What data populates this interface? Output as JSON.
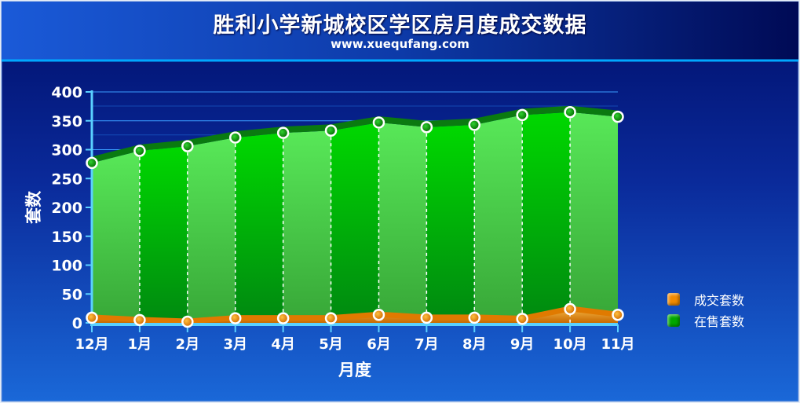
{
  "header": {
    "title": "胜利小学新城校区学区房月度成交数据",
    "subtitle": "www.xuequfang.com"
  },
  "chart_data": {
    "type": "area",
    "title": "胜利小学新城校区学区房月度成交数据",
    "subtitle": "www.xuequfang.com",
    "xlabel": "月度",
    "ylabel": "套数",
    "categories": [
      "12月",
      "1月",
      "2月",
      "3月",
      "4月",
      "5月",
      "6月",
      "7月",
      "8月",
      "9月",
      "10月",
      "11月"
    ],
    "ylim": [
      0,
      400
    ],
    "yticks": [
      0,
      50,
      100,
      150,
      200,
      250,
      300,
      350,
      400
    ],
    "legend_position": "right",
    "series": [
      {
        "name": "成交套数",
        "color": "#f08a00",
        "values": [
          9,
          5,
          2,
          8,
          8,
          8,
          14,
          9,
          9,
          7,
          24,
          14
        ]
      },
      {
        "name": "在售套数",
        "color": "#00a800",
        "values": [
          277,
          298,
          306,
          321,
          329,
          333,
          347,
          339,
          343,
          360,
          365,
          357
        ]
      }
    ]
  },
  "colors": {
    "background_top": "#1650c8",
    "background_bottom": "#0a2a90",
    "header_dark": "#000a55",
    "axis": "#5ad0ff",
    "grid": "#3aa0ff"
  }
}
